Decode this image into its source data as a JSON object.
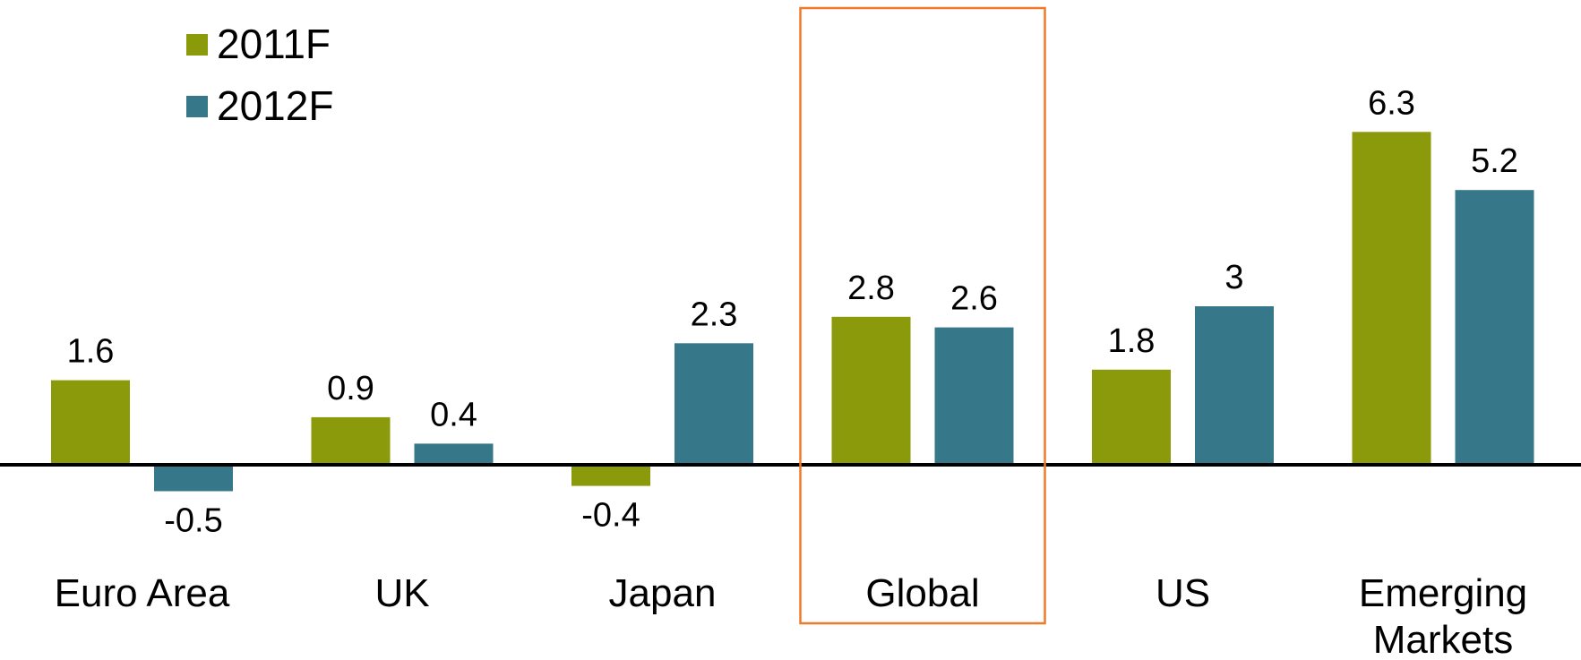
{
  "chart_data": {
    "type": "bar",
    "categories": [
      "Euro Area",
      "UK",
      "Japan",
      "Global",
      "US",
      "Emerging Markets"
    ],
    "category_lines": [
      [
        "Euro Area"
      ],
      [
        "UK"
      ],
      [
        "Japan"
      ],
      [
        "Global"
      ],
      [
        "US"
      ],
      [
        "Emerging",
        "Markets"
      ]
    ],
    "series": [
      {
        "name": "2011F",
        "color": "#8a9a0a",
        "values": [
          1.6,
          0.9,
          -0.4,
          2.8,
          1.8,
          6.3
        ],
        "labels": [
          "1.6",
          "0.9",
          "-0.4",
          "2.8",
          "1.8",
          "6.3"
        ]
      },
      {
        "name": "2012F",
        "color": "#36788a",
        "values": [
          -0.5,
          0.4,
          2.3,
          2.6,
          3,
          5.2
        ],
        "labels": [
          "-0.5",
          "0.4",
          "2.3",
          "2.6",
          "3",
          "5.2"
        ]
      }
    ],
    "highlight_category": "Global",
    "highlight_color": "#f07a2a",
    "legend_position": "top-left",
    "grid": false,
    "ylim": [
      -0.6,
      7.2
    ]
  }
}
